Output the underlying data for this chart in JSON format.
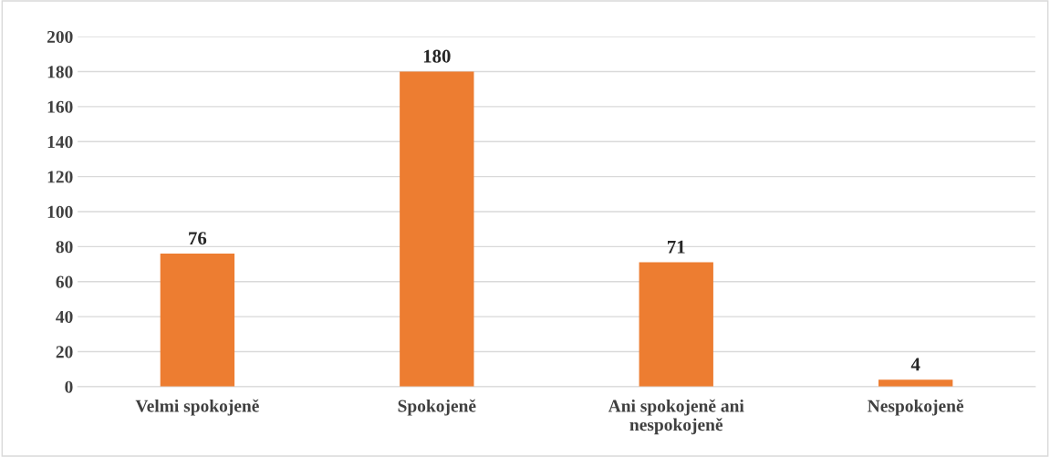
{
  "chart_data": {
    "type": "bar",
    "categories": [
      "Velmi spokojeně",
      "Spokojeně",
      "Ani spokojeně ani\nnespokojeně",
      "Nespokojeně"
    ],
    "values": [
      76,
      180,
      71,
      4
    ],
    "color": "#ed7d31",
    "ylim": [
      0,
      200
    ],
    "yticks": [
      0,
      20,
      40,
      60,
      80,
      100,
      120,
      140,
      160,
      180,
      200
    ],
    "grid": "y",
    "data_labels": true
  }
}
